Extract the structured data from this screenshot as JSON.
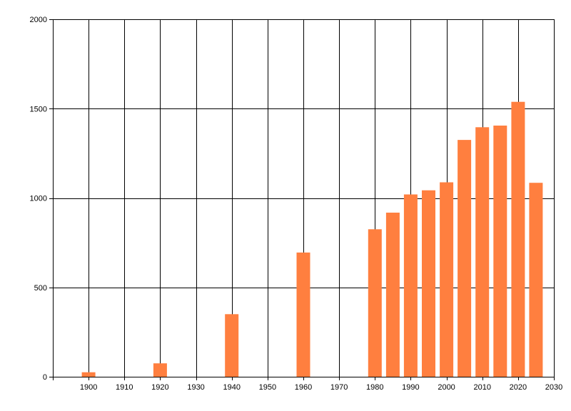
{
  "chart_data": {
    "type": "bar",
    "title": "",
    "xlabel": "",
    "ylabel": "",
    "x": [
      1900,
      1920,
      1940,
      1960,
      1980,
      1985,
      1990,
      1995,
      2000,
      2005,
      2010,
      2015,
      2020,
      2025
    ],
    "values": [
      25,
      75,
      350,
      695,
      825,
      918,
      1020,
      1043,
      1088,
      1325,
      1396,
      1405,
      1538,
      1085
    ],
    "xlim": [
      1890,
      2030
    ],
    "ylim": [
      0,
      2000
    ],
    "x_ticks": [
      1900,
      1910,
      1920,
      1930,
      1940,
      1950,
      1960,
      1970,
      1980,
      1990,
      2000,
      2010,
      2020,
      2030
    ],
    "y_ticks": [
      0,
      500,
      1000,
      1500,
      2000
    ],
    "grid": true,
    "bar_color": "#ff7f3f",
    "grid_color": "#000000"
  }
}
